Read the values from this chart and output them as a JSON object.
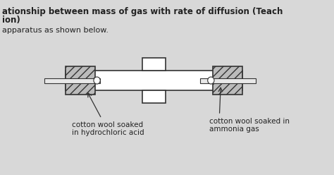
{
  "bg_color": "#d8d8d8",
  "title_line1": "ationship between mass of gas with rate of diffusion (Teach",
  "title_line2": "ion)",
  "subtitle": "apparatus as shown below.",
  "label_left_line1": "cotton wool soaked",
  "label_left_line2": "in hydrochloric acid",
  "label_right_line1": "cotton wool soaked in",
  "label_right_line2": "ammonia gas",
  "tube_color": "#ffffff",
  "tube_outline": "#333333",
  "hatch_color": "#555555",
  "rod_color": "#cccccc",
  "text_color": "#222222"
}
